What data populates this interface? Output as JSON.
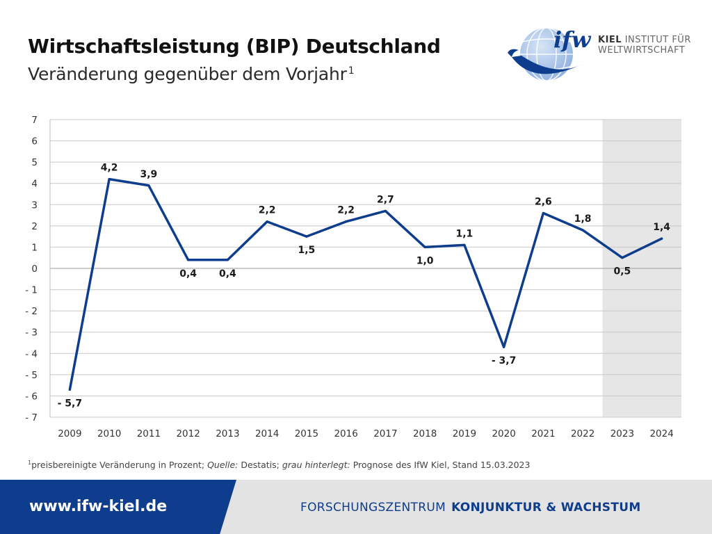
{
  "header": {
    "title": "Wirtschaftsleistung (BIP) Deutschland",
    "subtitle": "Veränderung gegenüber dem Vorjahr",
    "subtitle_footnote_mark": "1"
  },
  "logo": {
    "wordmark": "ifw",
    "line1_bold": "KIEL",
    "line1_rest": "INSTITUT FÜR",
    "line2": "WELTWIRTSCHAFT"
  },
  "chart_data": {
    "type": "line",
    "title": "",
    "xlabel": "",
    "ylabel": "",
    "x": [
      "2009",
      "2010",
      "2011",
      "2012",
      "2013",
      "2014",
      "2015",
      "2016",
      "2017",
      "2018",
      "2019",
      "2020",
      "2021",
      "2022",
      "2023",
      "2024"
    ],
    "series": [
      {
        "values": [
          -5.7,
          4.2,
          3.9,
          0.4,
          0.4,
          2.2,
          1.5,
          2.2,
          2.7,
          1.0,
          1.1,
          -3.7,
          2.6,
          1.8,
          0.5,
          1.4
        ]
      }
    ],
    "data_labels": [
      "- 5,7",
      "4,2",
      "3,9",
      "0,4",
      "0,4",
      "2,2",
      "1,5",
      "2,2",
      "2,7",
      "1,0",
      "1,1",
      "- 3,7",
      "2,6",
      "1,8",
      "0,5",
      "1,4"
    ],
    "ylim": [
      -7,
      7
    ],
    "y_ticks": [
      7,
      6,
      5,
      4,
      3,
      2,
      1,
      0,
      -1,
      -2,
      -3,
      -4,
      -5,
      -6,
      -7
    ],
    "y_tick_labels": [
      "7",
      "6",
      "5",
      "4",
      "3",
      "2",
      "1",
      "0",
      "- 1",
      "- 2",
      "- 3",
      "- 4",
      "- 5",
      "- 6",
      "- 7"
    ],
    "forecast_shaded_years": [
      "2023",
      "2024"
    ],
    "grid": true,
    "colors": {
      "line": "#0d3d8c",
      "forecast_background": "#e6e6e6",
      "grid": "#c8c8c8"
    }
  },
  "footnote": {
    "mark": "1",
    "text_1": "preisbereinigte Veränderung in Prozent; ",
    "quelle_label": "Quelle:",
    "text_2": " Destatis; ",
    "grau_label": "grau hinterlegt:",
    "text_3": " Prognose des IfW Kiel, Stand 15.03.2023"
  },
  "footer": {
    "url": "www.ifw-kiel.de",
    "center_light": "FORSCHUNGSZENTRUM",
    "center_bold": "KONJUNKTUR & WACHSTUM",
    "colors": {
      "blue": "#0d3d8c",
      "gray": "#e3e3e3"
    }
  }
}
